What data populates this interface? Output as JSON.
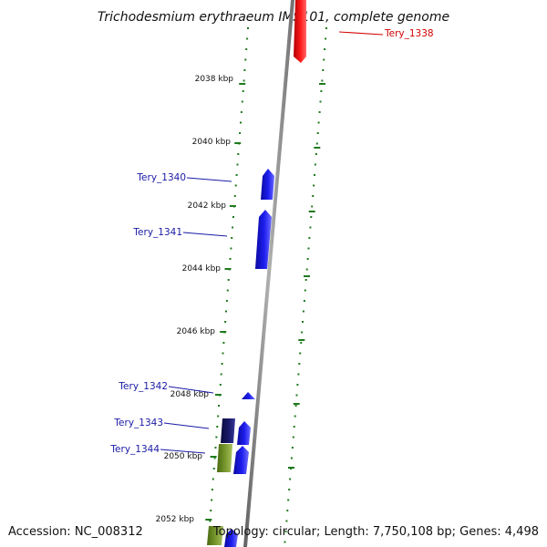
{
  "title": "Trichodesmium erythraeum IMS101, complete genome",
  "footer": {
    "accession": "Accession: NC_008312",
    "topology": "Topology: circular; Length: 7,750,108 bp; Genes: 4,498"
  },
  "kbp_labels": [
    "2038 kbp",
    "2040 kbp",
    "2042 kbp",
    "2044 kbp",
    "2046 kbp",
    "2048 kbp",
    "2050 kbp",
    "2052 kbp"
  ],
  "gene_labels": [
    "Tery_1338",
    "Tery_1340",
    "Tery_1341",
    "Tery_1342",
    "Tery_1343",
    "Tery_1344"
  ],
  "colors": {
    "background": "#ffffff",
    "backbone": "#808080",
    "tick_green": "#1f7a1f",
    "forward_gene": "#1414e6",
    "reverse_gene": "#f20000",
    "dark_gene": "#12125a",
    "olive_gene": "#6b8e23",
    "label_blue": "#1a1aa6",
    "label_red": "#d40000"
  }
}
